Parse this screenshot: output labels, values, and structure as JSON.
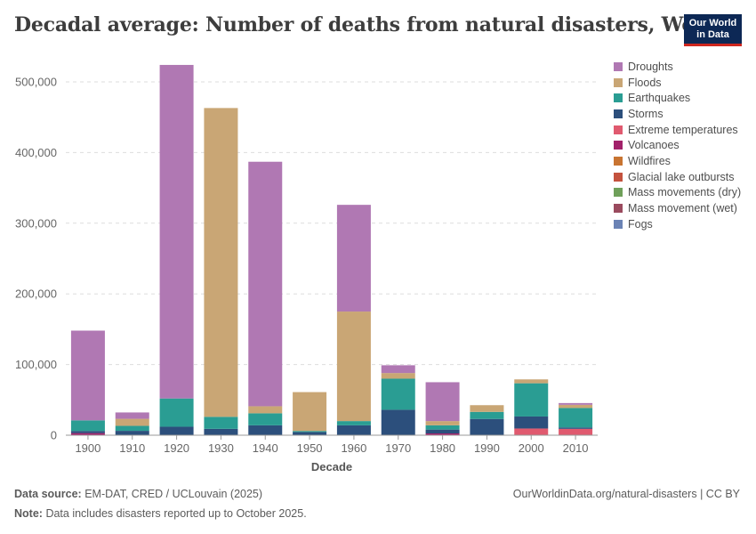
{
  "header": {
    "title": "Decadal average: Number of deaths from natural disasters, World",
    "logo_line1": "Our World",
    "logo_line2": "in Data"
  },
  "footer": {
    "source_label": "Data source:",
    "source_text": "EM-DAT, CRED / UCLouvain (2025)",
    "note_label": "Note:",
    "note_text": "Data includes disasters reported up to October 2025.",
    "url": "OurWorldinData.org/natural-disasters | CC BY"
  },
  "chart_data": {
    "type": "bar",
    "stacked": true,
    "title": "Decadal average: Number of deaths from natural disasters, World",
    "xlabel": "Decade",
    "ylabel": "",
    "ylim": [
      0,
      530000
    ],
    "yticks": [
      0,
      100000,
      200000,
      300000,
      400000,
      500000
    ],
    "ytick_labels": [
      "0",
      "100,000",
      "200,000",
      "300,000",
      "400,000",
      "500,000"
    ],
    "grid": true,
    "legend_position": "right",
    "categories": [
      "1900",
      "1910",
      "1920",
      "1930",
      "1940",
      "1950",
      "1960",
      "1970",
      "1980",
      "1990",
      "2000",
      "2010"
    ],
    "series": [
      {
        "name": "Fogs",
        "color": "#6b83b5",
        "values": [
          0,
          0,
          0,
          0,
          0,
          0,
          0,
          0,
          0,
          0,
          0,
          0
        ]
      },
      {
        "name": "Mass movement (wet)",
        "color": "#9a4a5e",
        "values": [
          0,
          0,
          0,
          0,
          0,
          0,
          0,
          0,
          0,
          0,
          0,
          0
        ]
      },
      {
        "name": "Mass movements (dry)",
        "color": "#6fa05a",
        "values": [
          0,
          0,
          0,
          0,
          0,
          0,
          0,
          0,
          0,
          0,
          0,
          0
        ]
      },
      {
        "name": "Glacial lake outbursts",
        "color": "#c4523e",
        "values": [
          0,
          0,
          0,
          0,
          0,
          0,
          0,
          0,
          0,
          0,
          0,
          0
        ]
      },
      {
        "name": "Wildfires",
        "color": "#c87431",
        "values": [
          0,
          0,
          0,
          0,
          0,
          0,
          0,
          0,
          0,
          0,
          0,
          0
        ]
      },
      {
        "name": "Volcanoes",
        "color": "#a2216a",
        "values": [
          3000,
          200,
          0,
          0,
          0,
          0,
          0,
          0,
          2500,
          0,
          0,
          0
        ]
      },
      {
        "name": "Extreme temperatures",
        "color": "#e05a6f",
        "values": [
          0,
          0,
          0,
          0,
          0,
          0,
          0,
          0,
          0,
          0,
          9500,
          9000
        ]
      },
      {
        "name": "Storms",
        "color": "#2c4f7c",
        "values": [
          3000,
          6000,
          12000,
          9000,
          14000,
          4500,
          14000,
          36000,
          5500,
          23000,
          17000,
          2000
        ]
      },
      {
        "name": "Earthquakes",
        "color": "#2a9d93",
        "values": [
          15000,
          7000,
          40000,
          17000,
          17000,
          1500,
          6000,
          44000,
          6000,
          10000,
          47000,
          27500
        ]
      },
      {
        "name": "Floods",
        "color": "#c9a675",
        "values": [
          0,
          10000,
          0,
          437000,
          10000,
          55000,
          155000,
          8000,
          6000,
          9500,
          5500,
          4500
        ]
      },
      {
        "name": "Droughts",
        "color": "#b078b3",
        "values": [
          127000,
          9000,
          472000,
          0,
          346000,
          0,
          151000,
          11000,
          55000,
          0,
          0,
          2500
        ]
      }
    ],
    "legend_order": [
      "Droughts",
      "Floods",
      "Earthquakes",
      "Storms",
      "Extreme temperatures",
      "Volcanoes",
      "Wildfires",
      "Glacial lake outbursts",
      "Mass movements (dry)",
      "Mass movement (wet)",
      "Fogs"
    ]
  }
}
